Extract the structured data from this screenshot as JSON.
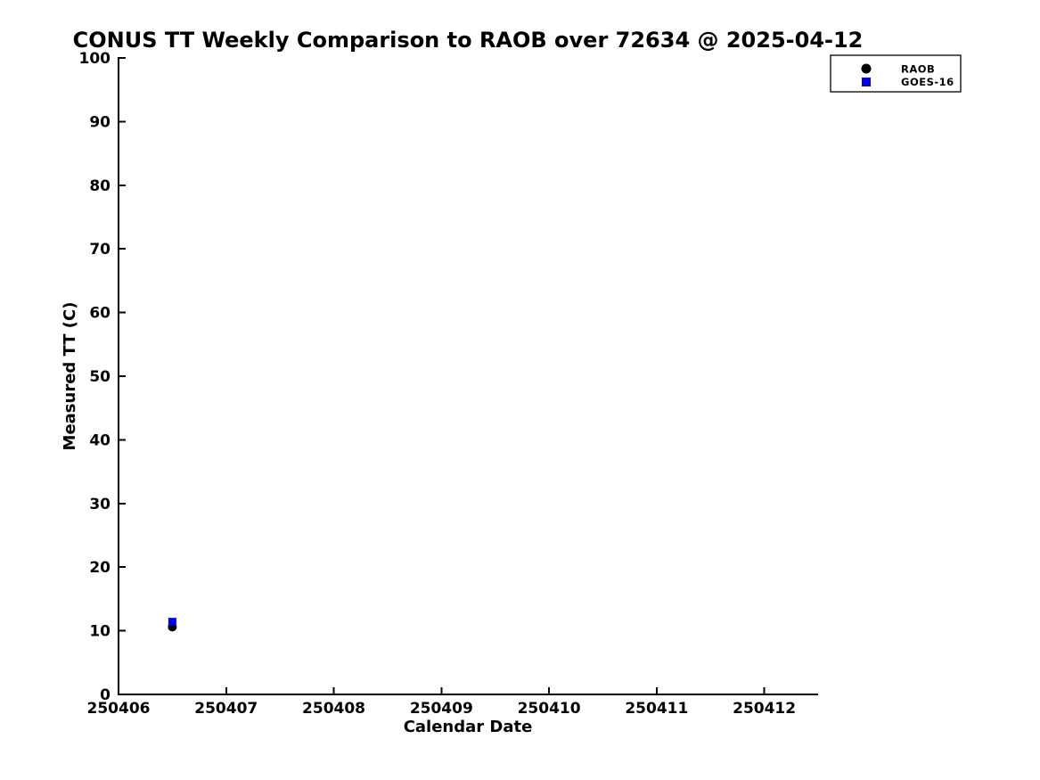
{
  "figure": {
    "background": "#ffffff",
    "text_color": "#000000"
  },
  "chart_data": {
    "type": "scatter",
    "title": "CONUS TT Weekly Comparison to RAOB over 72634 @ 2025-04-12",
    "xlabel": "Calendar Date",
    "ylabel": "Measured TT (C)",
    "xlim": [
      250406,
      250412.5
    ],
    "ylim": [
      0,
      100
    ],
    "xticks": [
      250406,
      250407,
      250408,
      250409,
      250410,
      250411,
      250412
    ],
    "yticks": [
      0,
      10,
      20,
      30,
      40,
      50,
      60,
      70,
      80,
      90,
      100
    ],
    "grid": false,
    "tick_direction": "in",
    "axis_color": "#000000",
    "legend": {
      "position": "top-right-outside",
      "entries": [
        {
          "label": "RAOB",
          "marker": "circle",
          "color": "#000000"
        },
        {
          "label": "GOES-16",
          "marker": "square",
          "color": "#0000ee"
        }
      ]
    },
    "series": [
      {
        "name": "RAOB",
        "marker": "circle",
        "color": "#000000",
        "points": [
          {
            "x": 250406.5,
            "y": 10.6
          }
        ]
      },
      {
        "name": "GOES-16",
        "marker": "square",
        "color": "#0000ee",
        "points": [
          {
            "x": 250406.5,
            "y": 11.4
          }
        ]
      }
    ]
  }
}
